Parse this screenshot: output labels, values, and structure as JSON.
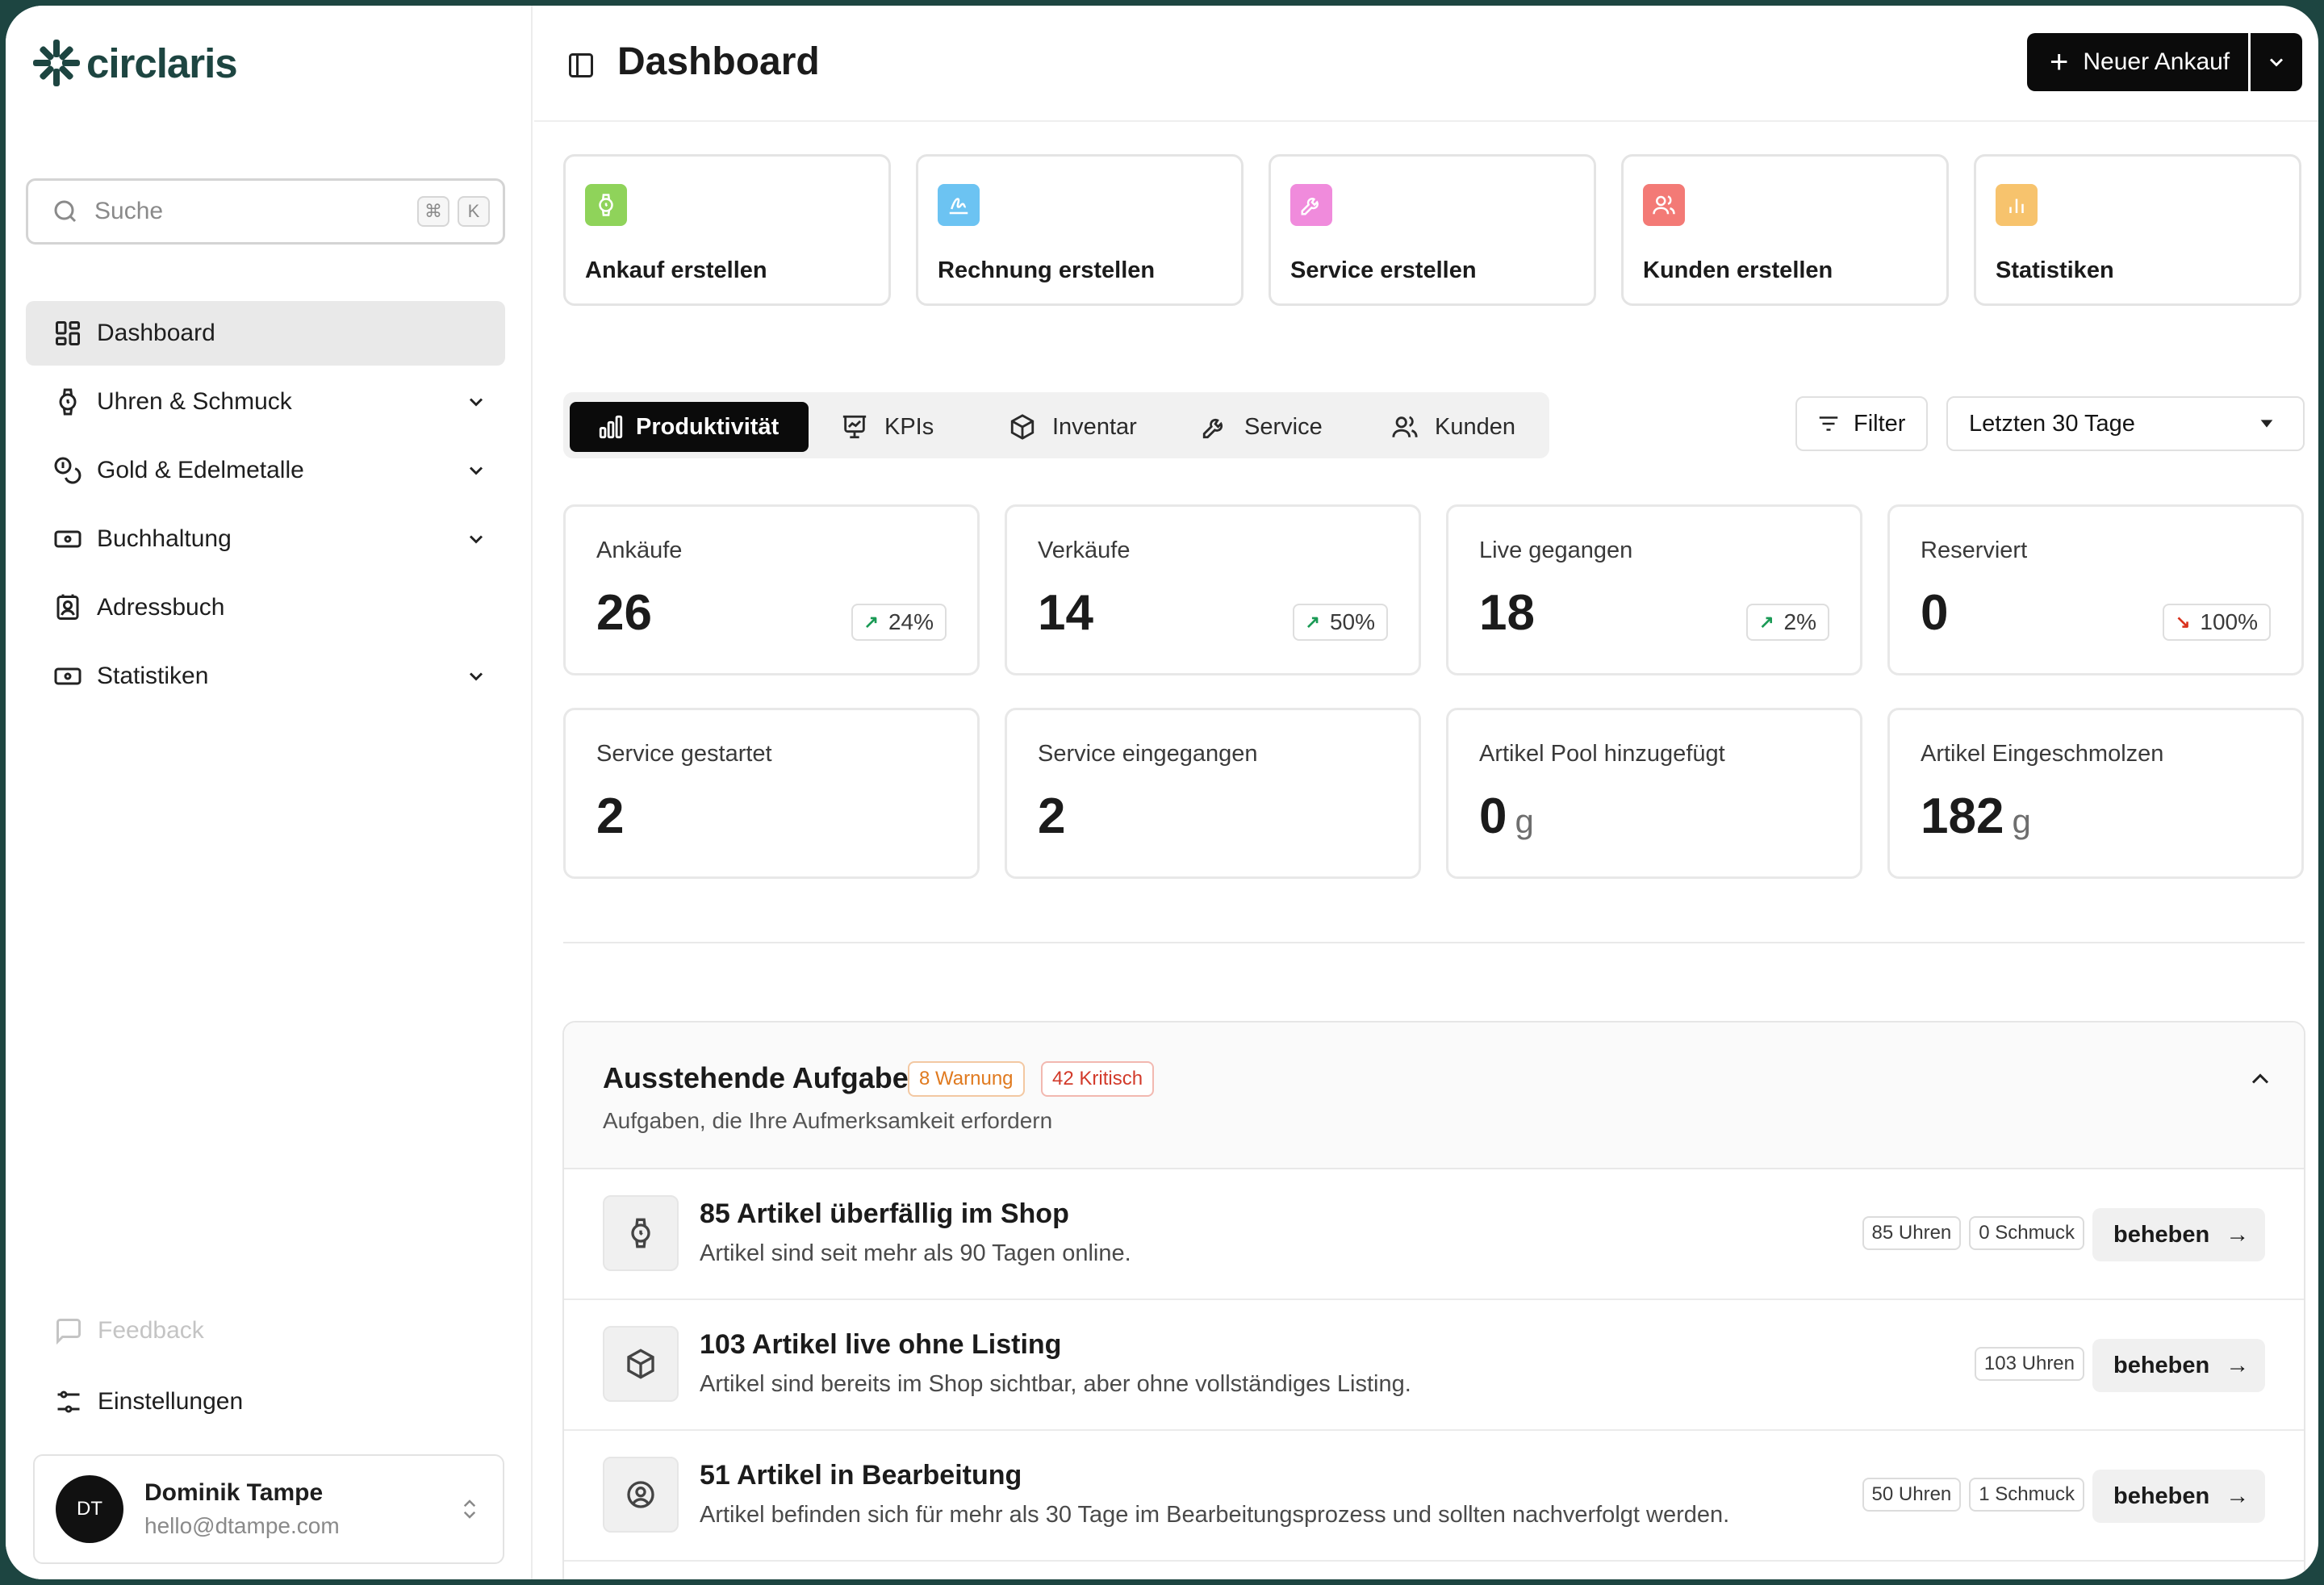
{
  "sidebar": {
    "logo_text": "circlaris",
    "search": {
      "placeholder": "Suche",
      "key1": "⌘",
      "key2": "K"
    },
    "nav": [
      {
        "label": "Dashboard",
        "icon": "dashboard-icon",
        "active": true
      },
      {
        "label": "Uhren & Schmuck",
        "icon": "watch-icon",
        "expandable": true
      },
      {
        "label": "Gold & Edelmetalle",
        "icon": "coins-icon",
        "expandable": true
      },
      {
        "label": "Buchhaltung",
        "icon": "banknote-icon",
        "expandable": true
      },
      {
        "label": "Adressbuch",
        "icon": "contact-book-icon"
      },
      {
        "label": "Statistiken",
        "icon": "banknote-icon",
        "expandable": true
      }
    ],
    "feedback_label": "Feedback",
    "settings_label": "Einstellungen",
    "user": {
      "initials": "DT",
      "name": "Dominik Tampe",
      "email": "hello@dtampe.com"
    }
  },
  "header": {
    "title": "Dashboard",
    "new_button_label": "Neuer Ankauf"
  },
  "quick_actions": [
    {
      "label": "Ankauf erstellen",
      "icon": "watch-icon",
      "color": "#8fd35a"
    },
    {
      "label": "Rechnung erstellen",
      "icon": "signature-icon",
      "color": "#6cc3f2"
    },
    {
      "label": "Service erstellen",
      "icon": "wrench-icon",
      "color": "#f08bdc"
    },
    {
      "label": "Kunden erstellen",
      "icon": "users-icon",
      "color": "#f37a76"
    },
    {
      "label": "Statistiken",
      "icon": "bar-chart-icon",
      "color": "#f7c36d"
    }
  ],
  "tabs": [
    {
      "label": "Produktivität",
      "icon": "bar-chart-icon",
      "active": true
    },
    {
      "label": "KPIs",
      "icon": "presentation-icon"
    },
    {
      "label": "Inventar",
      "icon": "box-icon"
    },
    {
      "label": "Service",
      "icon": "wrench-icon"
    },
    {
      "label": "Kunden",
      "icon": "users-icon"
    }
  ],
  "filter_label": "Filter",
  "date_range": "Letzten 30 Tage",
  "kpis": [
    {
      "label": "Ankäufe",
      "value": "26",
      "change": "24%",
      "trend": "up"
    },
    {
      "label": "Verkäufe",
      "value": "14",
      "change": "50%",
      "trend": "up"
    },
    {
      "label": "Live gegangen",
      "value": "18",
      "change": "2%",
      "trend": "up"
    },
    {
      "label": "Reserviert",
      "value": "0",
      "change": "100%",
      "trend": "down"
    },
    {
      "label": "Service gestartet",
      "value": "2"
    },
    {
      "label": "Service eingegangen",
      "value": "2"
    },
    {
      "label": "Artikel Pool hinzugefügt",
      "value": "0",
      "unit": "g"
    },
    {
      "label": "Artikel Eingeschmolzen",
      "value": "182",
      "unit": "g"
    }
  ],
  "tasks": {
    "title": "Ausstehende Aufgaben",
    "warning_badge": "8 Warnung",
    "critical_badge": "42 Kritisch",
    "subtitle": "Aufgaben, die Ihre Aufmerksamkeit erfordern",
    "items": [
      {
        "title": "85 Artikel überfällig im Shop",
        "description": "Artikel sind seit mehr als 90 Tagen online.",
        "icon": "watch-icon",
        "tags": [
          "85 Uhren",
          "0 Schmuck"
        ],
        "action": "beheben"
      },
      {
        "title": "103 Artikel live ohne Listing",
        "description": "Artikel sind bereits im Shop sichtbar, aber ohne vollständiges Listing.",
        "icon": "box-icon",
        "tags": [
          "103 Uhren"
        ],
        "action": "beheben"
      },
      {
        "title": "51 Artikel in Bearbeitung",
        "description": "Artikel befinden sich für mehr als 30 Tage im Bearbeitungsprozess und sollten nachverfolgt werden.",
        "icon": "user-circle-icon",
        "tags": [
          "50 Uhren",
          "1 Schmuck"
        ],
        "action": "beheben"
      }
    ]
  },
  "colors": {
    "brand": "#1d4541",
    "trend_up": "#1a9a55",
    "trend_down": "#d9331f",
    "warning": "#e07a1f",
    "critical": "#d23a2a"
  }
}
